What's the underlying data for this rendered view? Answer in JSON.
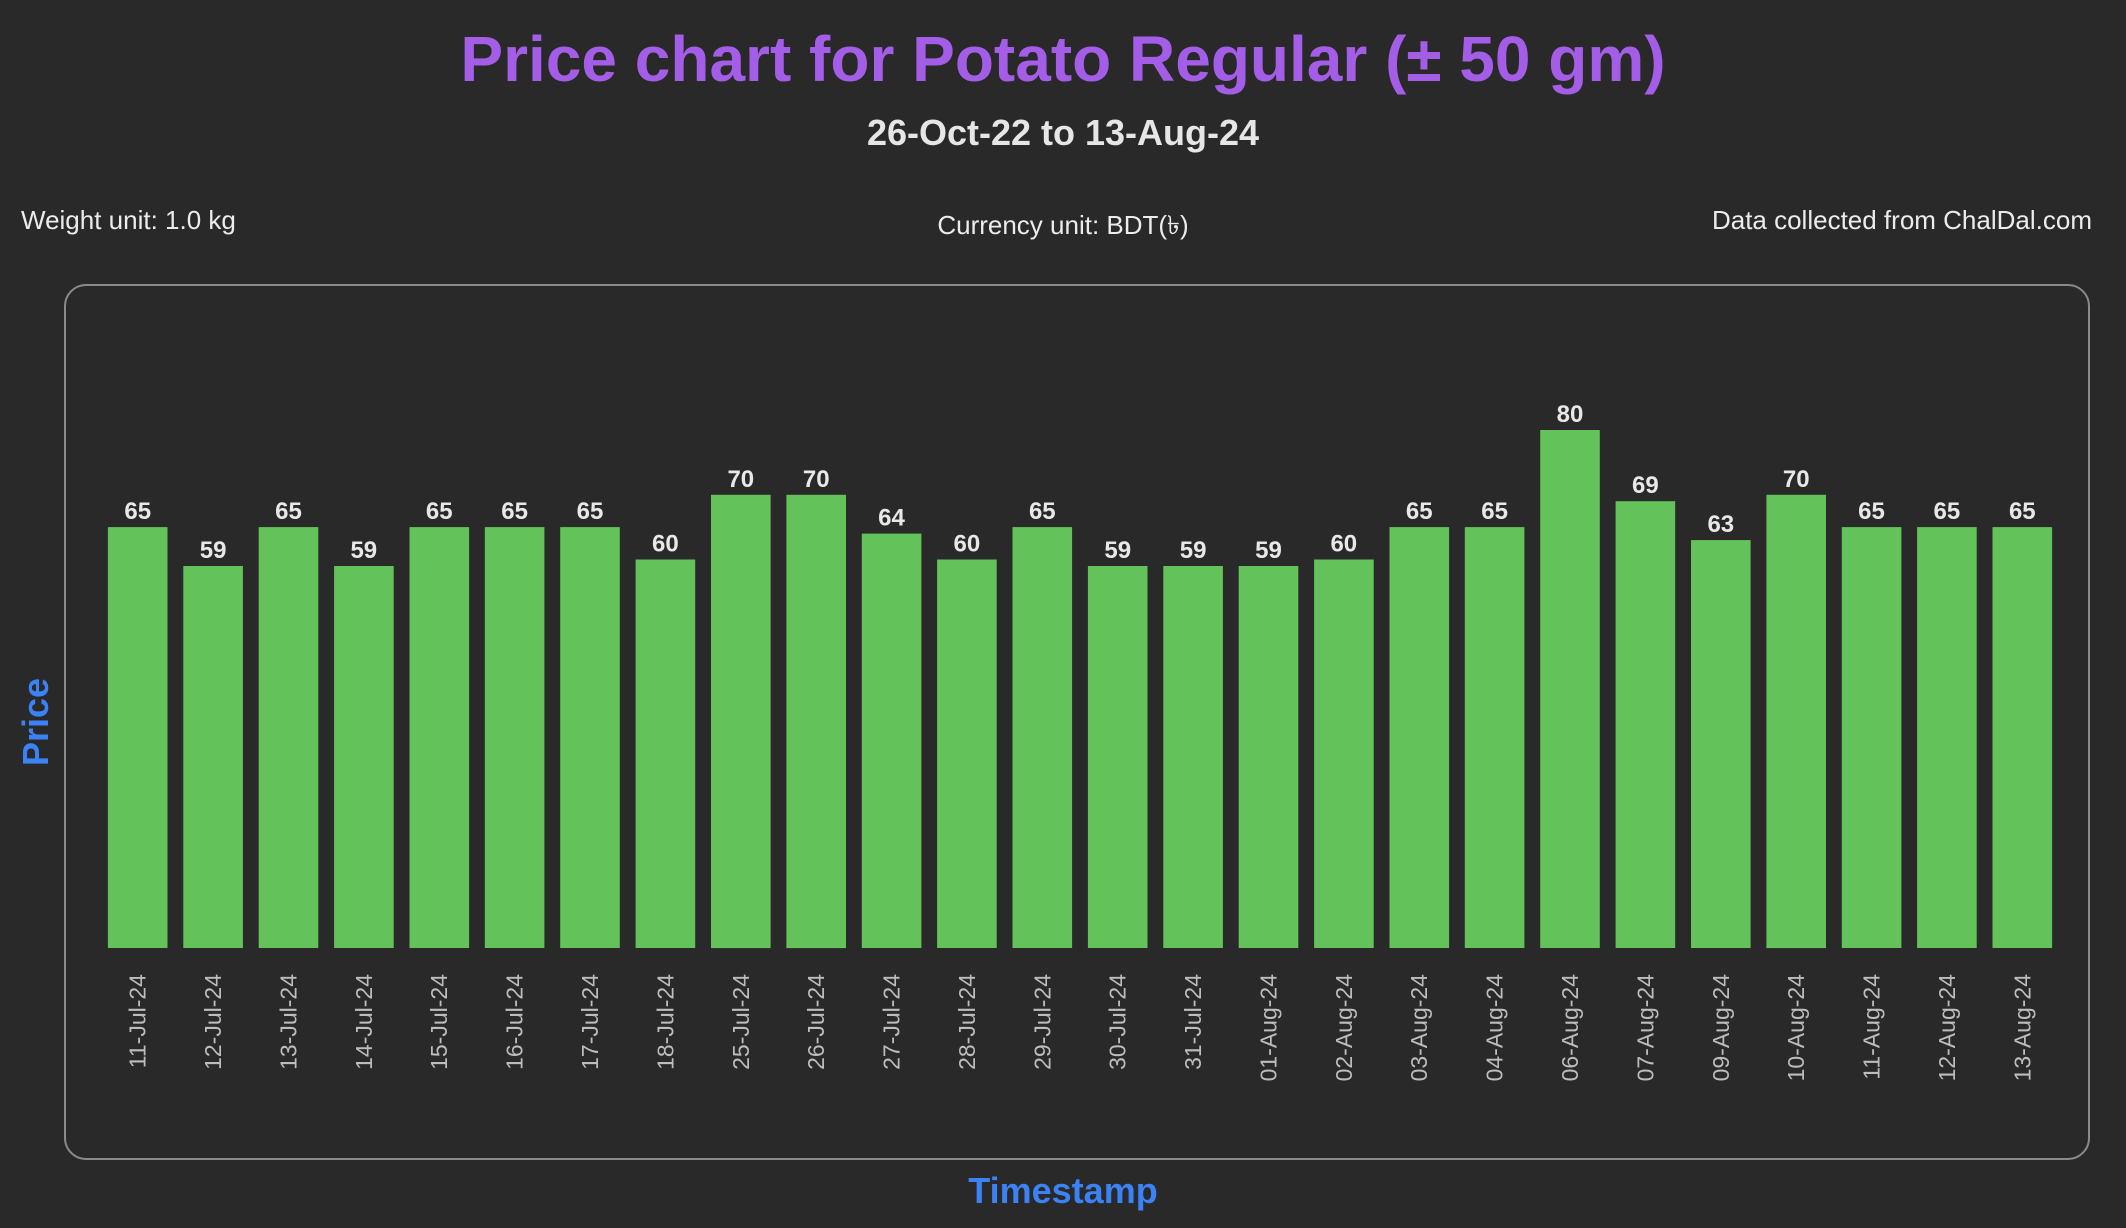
{
  "header": {
    "title": "Price chart for Potato Regular (± 50 gm)",
    "subtitle": "26-Oct-22 to 13-Aug-24"
  },
  "info": {
    "weight_unit": "Weight unit: 1.0 kg",
    "currency_unit": "Currency unit: BDT(৳)",
    "source": "Data collected from ChalDal.com"
  },
  "colors": {
    "background": "#292929",
    "bar": "#63c35a",
    "title": "#a45de6",
    "axis_label": "#3b82f6"
  },
  "chart_data": {
    "type": "bar",
    "title": "Price chart for Potato Regular (± 50 gm)",
    "subtitle": "26-Oct-22 to 13-Aug-24",
    "xlabel": "Timestamp",
    "ylabel": "Price",
    "categories": [
      "11-Jul-24",
      "12-Jul-24",
      "13-Jul-24",
      "14-Jul-24",
      "15-Jul-24",
      "16-Jul-24",
      "17-Jul-24",
      "18-Jul-24",
      "25-Jul-24",
      "26-Jul-24",
      "27-Jul-24",
      "28-Jul-24",
      "29-Jul-24",
      "30-Jul-24",
      "31-Jul-24",
      "01-Aug-24",
      "02-Aug-24",
      "03-Aug-24",
      "04-Aug-24",
      "06-Aug-24",
      "07-Aug-24",
      "09-Aug-24",
      "10-Aug-24",
      "11-Aug-24",
      "12-Aug-24",
      "13-Aug-24"
    ],
    "values": [
      65,
      59,
      65,
      59,
      65,
      65,
      65,
      60,
      70,
      70,
      64,
      60,
      65,
      59,
      59,
      59,
      60,
      65,
      65,
      80,
      69,
      63,
      70,
      65,
      65,
      65
    ],
    "ylim": [
      0,
      88
    ],
    "grid": false,
    "data_labels": true
  }
}
